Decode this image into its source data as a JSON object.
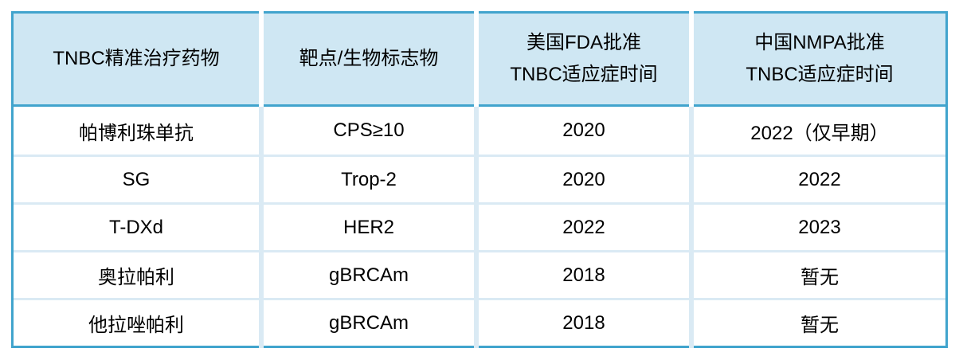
{
  "colors": {
    "border_blue": "#41a4cd",
    "header_background": "#cfe7f3",
    "grid_line": "#daeaf4",
    "text": "#000000",
    "page_background": "#ffffff"
  },
  "table": {
    "columns": [
      {
        "name": "drug",
        "header_lines": [
          "TNBC精准治疗药物"
        ]
      },
      {
        "name": "target-biomarker",
        "header_lines": [
          "靶点/生物标志物"
        ]
      },
      {
        "name": "fda-approval-date",
        "header_lines": [
          "美国FDA批准",
          "TNBC适应症时间"
        ]
      },
      {
        "name": "nmpa-approval-date",
        "header_lines": [
          "中国NMPA批准",
          "TNBC适应症时间"
        ]
      }
    ],
    "rows": [
      {
        "cells": [
          "帕博利珠单抗",
          "CPS≥10",
          "2020",
          "2022（仅早期）"
        ]
      },
      {
        "cells": [
          "SG",
          "Trop-2",
          "2020",
          "2022"
        ]
      },
      {
        "cells": [
          "T-DXd",
          "HER2",
          "2022",
          "2023"
        ]
      },
      {
        "cells": [
          "奥拉帕利",
          "gBRCAm",
          "2018",
          "暂无"
        ]
      },
      {
        "cells": [
          "他拉唑帕利",
          "gBRCAm",
          "2018",
          "暂无"
        ]
      }
    ]
  }
}
